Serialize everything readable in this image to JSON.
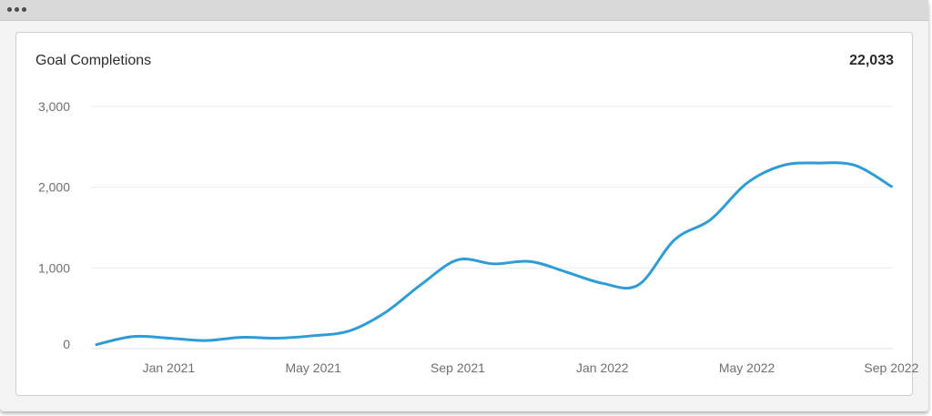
{
  "window": {
    "titlebar_dots": 3
  },
  "card": {
    "title": "Goal Completions",
    "total": "22,033"
  },
  "chart_data": {
    "type": "line",
    "title": "Goal Completions",
    "xlabel": "",
    "ylabel": "",
    "ylim": [
      0,
      3000
    ],
    "yticks": [
      0,
      1000,
      2000,
      3000
    ],
    "ytick_labels": [
      "0",
      "1,000",
      "2,000",
      "3,000"
    ],
    "xtick_labels": [
      "Jan 2021",
      "May 2021",
      "Sep 2021",
      "Jan 2022",
      "May 2022",
      "Sep 2022"
    ],
    "grid": true,
    "legend": "none",
    "colors": {
      "line": "#2e9cd6",
      "grid": "#ebebeb",
      "axis": "#e2e2e2"
    },
    "series": [
      {
        "x": [
          "2020-11",
          "2020-12",
          "2021-01",
          "2021-02",
          "2021-03",
          "2021-04",
          "2021-05",
          "2021-06",
          "2021-07",
          "2021-08",
          "2021-09",
          "2021-10",
          "2021-11",
          "2021-12",
          "2022-01",
          "2022-02",
          "2022-03",
          "2022-04",
          "2022-05",
          "2022-06",
          "2022-07",
          "2022-08",
          "2022-09"
        ],
        "values": [
          50,
          150,
          130,
          100,
          140,
          130,
          160,
          220,
          450,
          800,
          1100,
          1050,
          1080,
          950,
          810,
          790,
          1350,
          1600,
          2050,
          2270,
          2300,
          2270,
          2010
        ]
      }
    ]
  }
}
